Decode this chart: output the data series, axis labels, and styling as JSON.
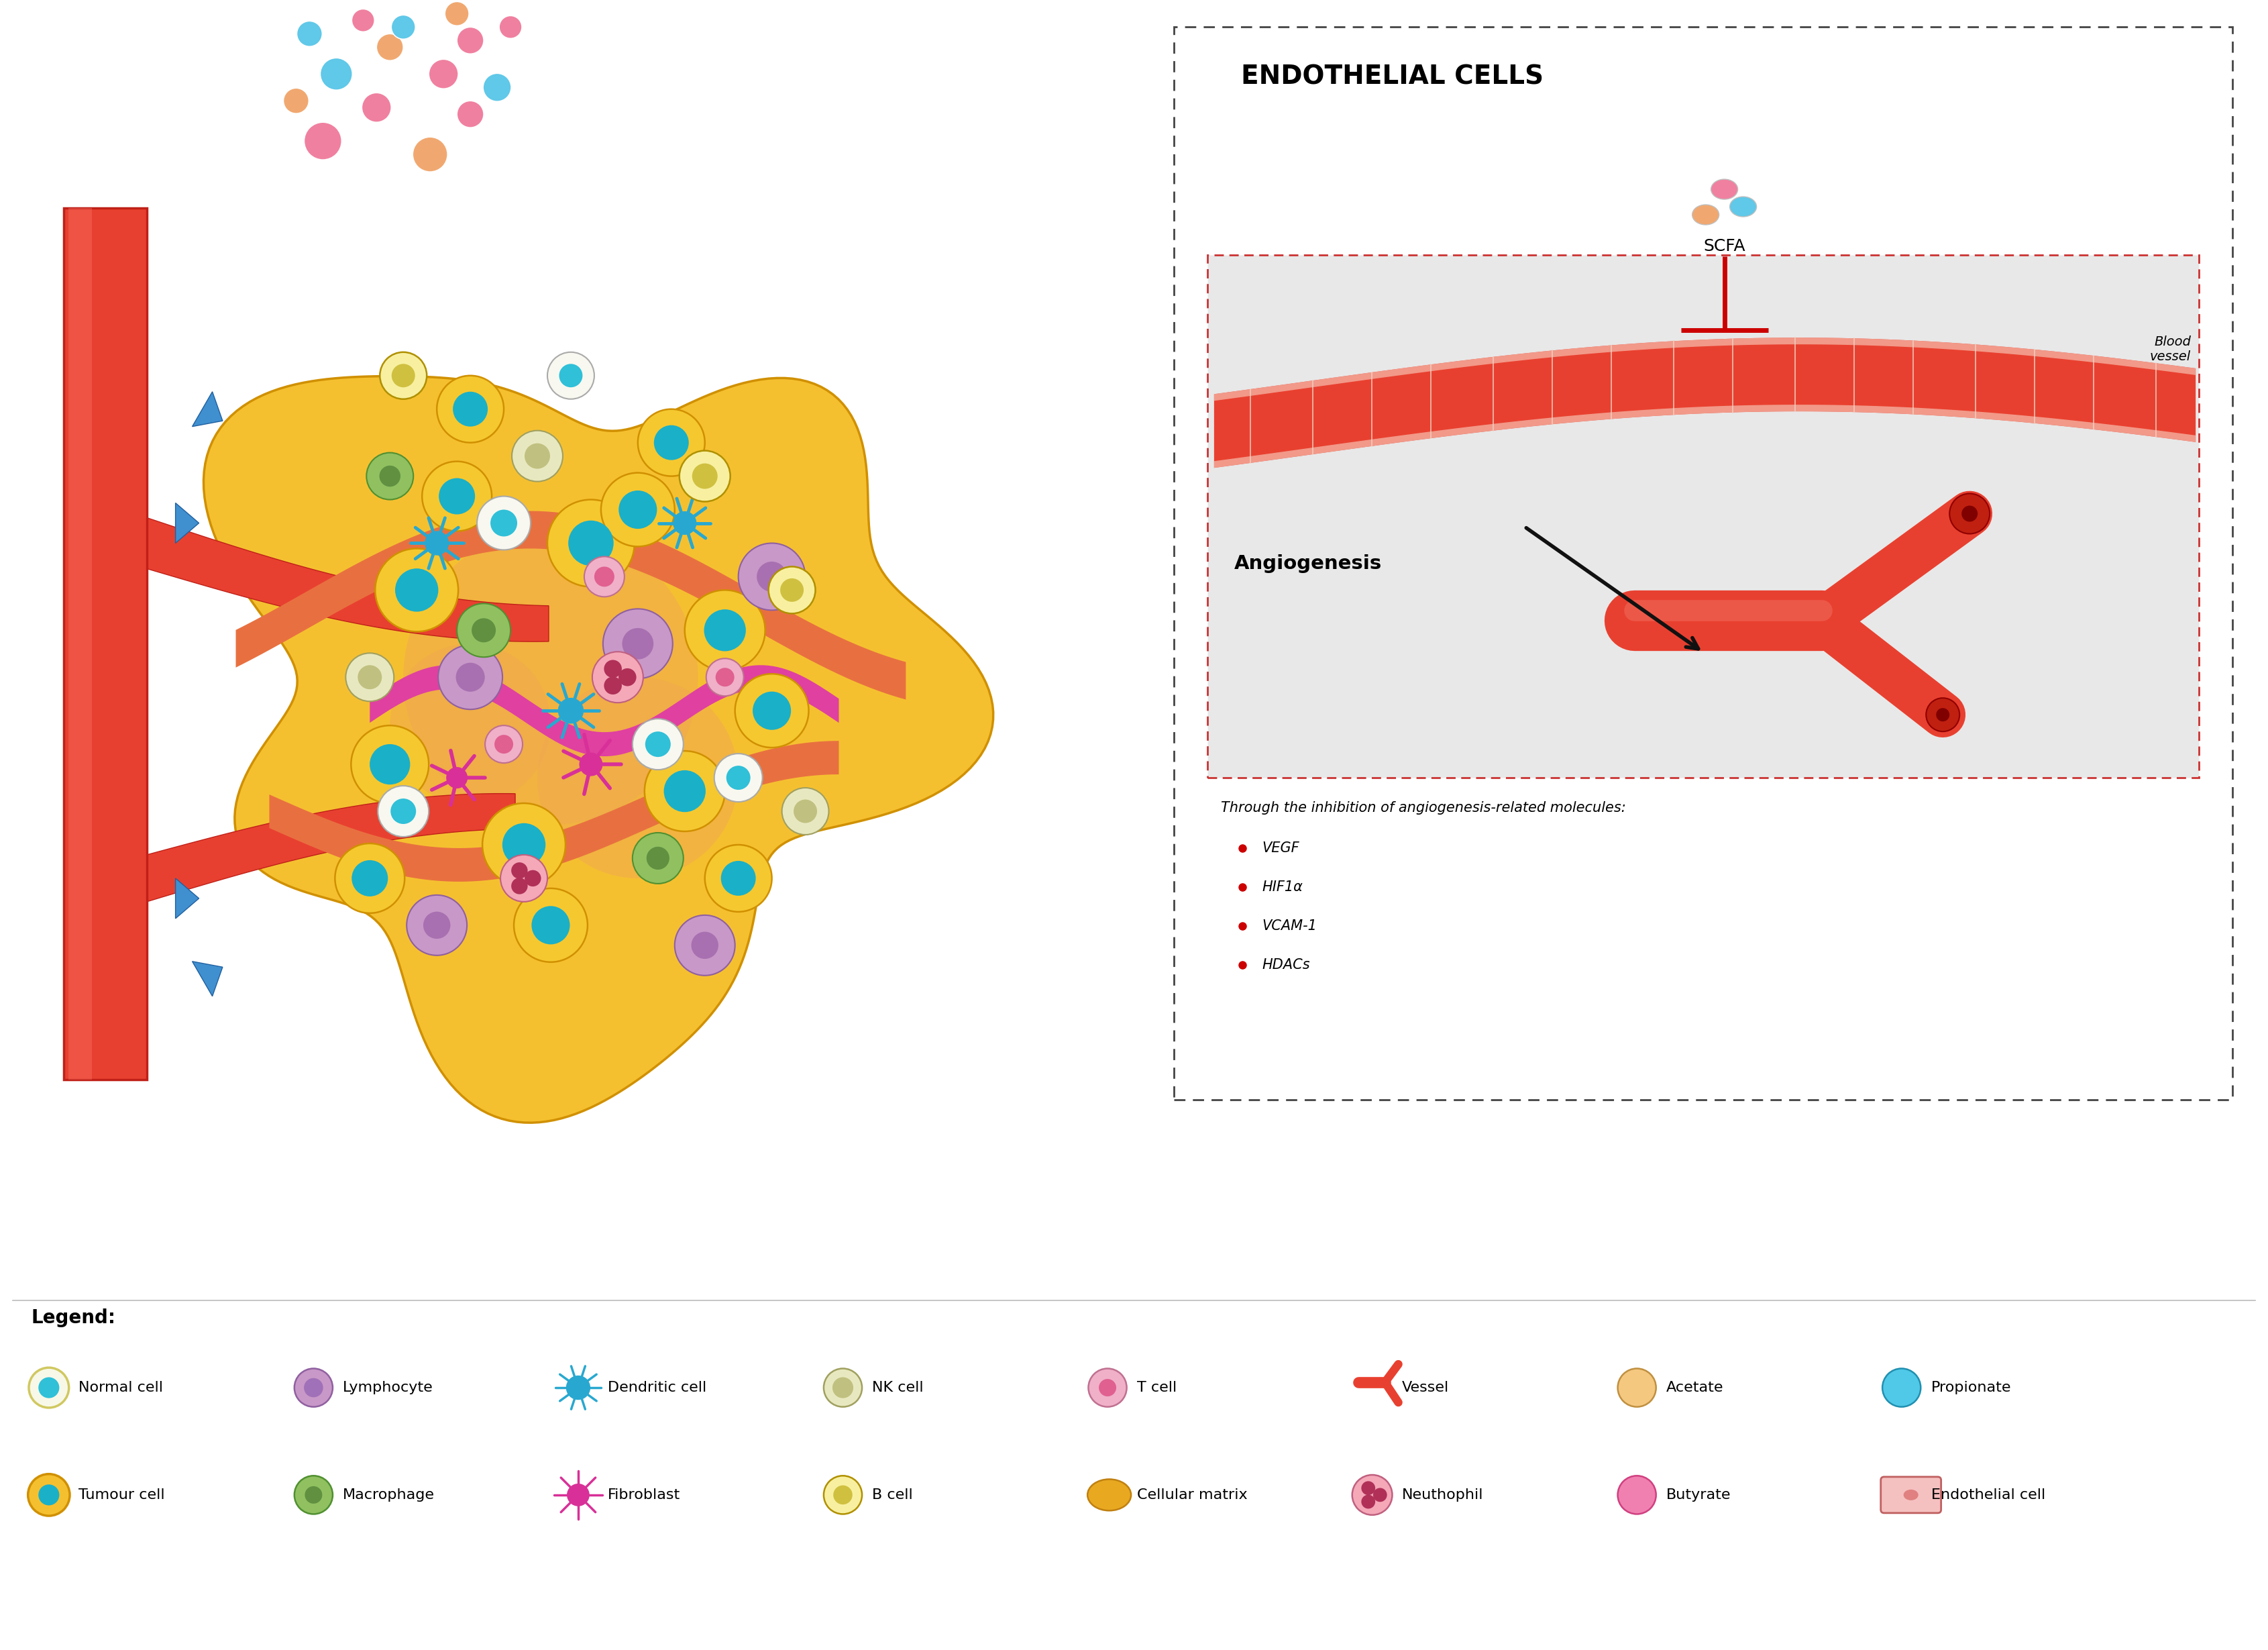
{
  "title": "ENDOTHELIAL CELLS",
  "scfa_label": "SCFA",
  "blood_vessel_label": "Blood\nvessel",
  "angiogenesis_label": "Angiogenesis",
  "inhibition_text": "Through the inhibition of angiogenesis-related molecules:",
  "bullet_items": [
    "VEGF",
    "HIF1α",
    "VCAM-1",
    "HDACs"
  ],
  "legend_title": "Legend:",
  "scfa_colors": [
    "#f080a0",
    "#f0a870",
    "#60c8e8"
  ],
  "vessel_color": "#e84030",
  "inhibit_color": "#cc0000",
  "arrow_color": "#111111",
  "background_color": "#ffffff",
  "box_border": "#444444",
  "inner_box_bg": "#e8e8e8",
  "inner_box_border": "#cc3333",
  "bullet_color": "#cc0000",
  "float_scfa": [
    [
      4.8,
      22.8,
      "#f080a0",
      0.28
    ],
    [
      5.6,
      23.3,
      "#f080a0",
      0.22
    ],
    [
      6.4,
      22.6,
      "#f0a870",
      0.26
    ],
    [
      7.0,
      23.2,
      "#f080a0",
      0.2
    ],
    [
      5.0,
      23.8,
      "#60c8e8",
      0.24
    ],
    [
      5.8,
      24.2,
      "#f0a870",
      0.2
    ],
    [
      6.6,
      23.8,
      "#f080a0",
      0.22
    ],
    [
      7.4,
      23.6,
      "#60c8e8",
      0.21
    ],
    [
      4.4,
      23.4,
      "#f0a870",
      0.19
    ],
    [
      6.0,
      24.5,
      "#60c8e8",
      0.18
    ],
    [
      7.0,
      24.3,
      "#f080a0",
      0.2
    ],
    [
      5.4,
      24.6,
      "#f080a0",
      0.17
    ],
    [
      6.8,
      24.7,
      "#f0a870",
      0.18
    ],
    [
      4.6,
      24.4,
      "#60c8e8",
      0.19
    ],
    [
      7.6,
      24.5,
      "#f080a0",
      0.17
    ]
  ]
}
